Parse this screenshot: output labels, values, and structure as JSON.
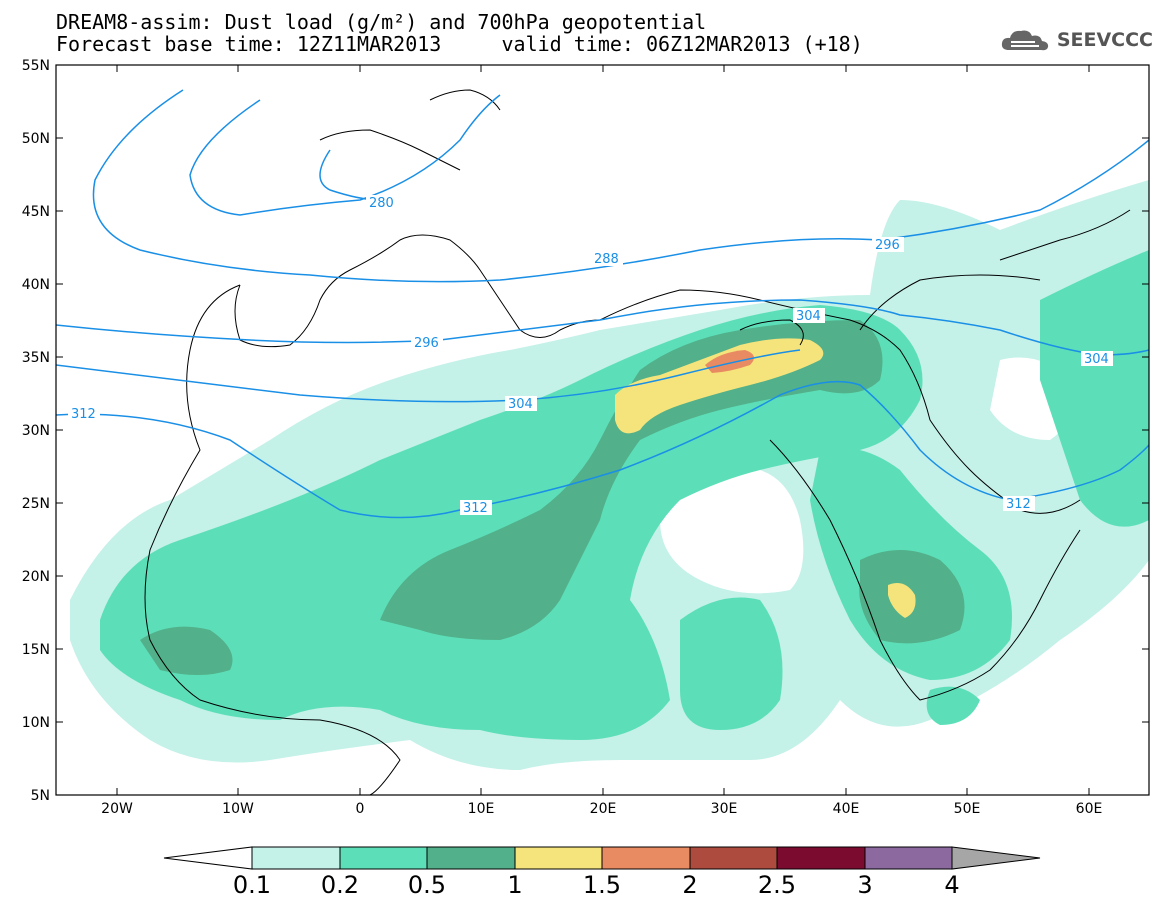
{
  "header": {
    "line1": "DREAM8-assim: Dust load (g/m²) and 700hPa geopotential",
    "line2": "Forecast base time: 12Z11MAR2013     valid time: 06Z12MAR2013 (+18)"
  },
  "logo": {
    "text": "SEEVCCC",
    "icon": "cloud-icon"
  },
  "map": {
    "latitude_labels": [
      "55N",
      "50N",
      "45N",
      "40N",
      "35N",
      "30N",
      "25N",
      "20N",
      "15N",
      "10N",
      "5N"
    ],
    "longitude_labels": [
      "20W",
      "10W",
      "0",
      "10E",
      "20E",
      "30E",
      "40E",
      "50E",
      "60E"
    ],
    "geopotential_labels": [
      "280",
      "288",
      "296",
      "296",
      "304",
      "304",
      "304",
      "312",
      "312",
      "312"
    ],
    "colors": {
      "contour_line": "#1a8fe6",
      "coastline": "#000000"
    }
  },
  "colorbar": {
    "tick_labels": [
      "0.1",
      "0.2",
      "0.5",
      "1",
      "1.5",
      "2",
      "2.5",
      "3",
      "4"
    ],
    "colors": [
      "#ffffff",
      "#c4f1e8",
      "#5cdfb8",
      "#52b08a",
      "#f5e47b",
      "#e98b62",
      "#ad4b3f",
      "#7c0c2f",
      "#8c6a9f",
      "#a6a6a6"
    ]
  }
}
